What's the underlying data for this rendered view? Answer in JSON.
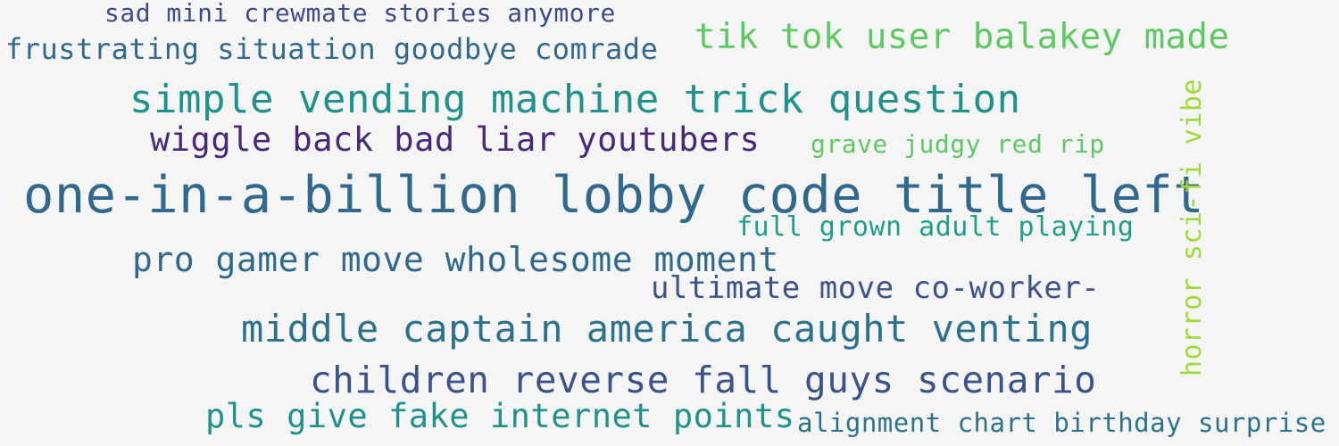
{
  "word_cloud": {
    "background": "#f5f5f5",
    "phrases": [
      {
        "text": "sad mini crewmate stories anymore",
        "color": "#3f4a8a",
        "orientation": "horizontal"
      },
      {
        "text": "frustrating situation goodbye comrade",
        "color": "#31688e",
        "orientation": "horizontal"
      },
      {
        "text": "tik tok user balakey made",
        "color": "#5ec962",
        "orientation": "horizontal"
      },
      {
        "text": "simple vending machine trick question",
        "color": "#21918c",
        "orientation": "horizontal"
      },
      {
        "text": "wiggle back bad liar youtubers",
        "color": "#482878",
        "orientation": "horizontal"
      },
      {
        "text": "grave judgy red rip",
        "color": "#5ec962",
        "orientation": "horizontal"
      },
      {
        "text": "one-in-a-billion lobby code title left",
        "color": "#31688e",
        "orientation": "horizontal"
      },
      {
        "text": "full grown adult playing",
        "color": "#1f9e89",
        "orientation": "horizontal"
      },
      {
        "text": "pro gamer move wholesome moment",
        "color": "#31688e",
        "orientation": "horizontal"
      },
      {
        "text": "ultimate move co-worker-",
        "color": "#3b528b",
        "orientation": "horizontal"
      },
      {
        "text": "middle captain america caught venting",
        "color": "#2c728e",
        "orientation": "horizontal"
      },
      {
        "text": "children reverse fall guys scenario",
        "color": "#3b528b",
        "orientation": "horizontal"
      },
      {
        "text": "pls give fake internet points",
        "color": "#21918c",
        "orientation": "horizontal"
      },
      {
        "text": "alignment chart birthday surprise",
        "color": "#2c728e",
        "orientation": "horizontal"
      },
      {
        "text": "horror sci-fi vibe",
        "color": "#a0da39",
        "orientation": "vertical"
      }
    ]
  }
}
